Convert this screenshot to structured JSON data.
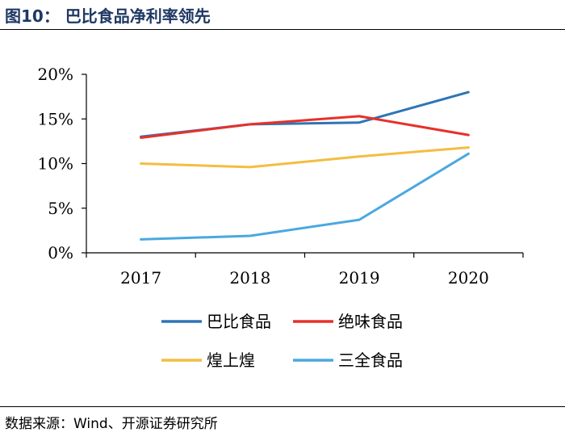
{
  "figure": {
    "title": "图10：  巴比食品净利率领先",
    "source": "数据来源：Wind、开源证券研究所"
  },
  "chart_data": {
    "type": "line",
    "title": "巴比食品净利率领先",
    "xlabel": "",
    "ylabel": "",
    "categories": [
      "2017",
      "2018",
      "2019",
      "2020"
    ],
    "ylim": [
      0,
      20
    ],
    "yticks": [
      0,
      5,
      10,
      15,
      20
    ],
    "ytick_labels": [
      "0%",
      "5%",
      "10%",
      "15%",
      "20%"
    ],
    "grid": false,
    "legend_position": "bottom",
    "series": [
      {
        "name": "巴比食品",
        "color": "#2e75b6",
        "values": [
          13.0,
          14.4,
          14.6,
          18.0
        ]
      },
      {
        "name": "绝味食品",
        "color": "#e8302a",
        "values": [
          12.9,
          14.4,
          15.3,
          13.2
        ]
      },
      {
        "name": "煌上煌",
        "color": "#f4bd42",
        "values": [
          10.0,
          9.6,
          10.8,
          11.8
        ]
      },
      {
        "name": "三全食品",
        "color": "#4aa8e0",
        "values": [
          1.5,
          1.9,
          3.7,
          11.1
        ]
      }
    ]
  }
}
